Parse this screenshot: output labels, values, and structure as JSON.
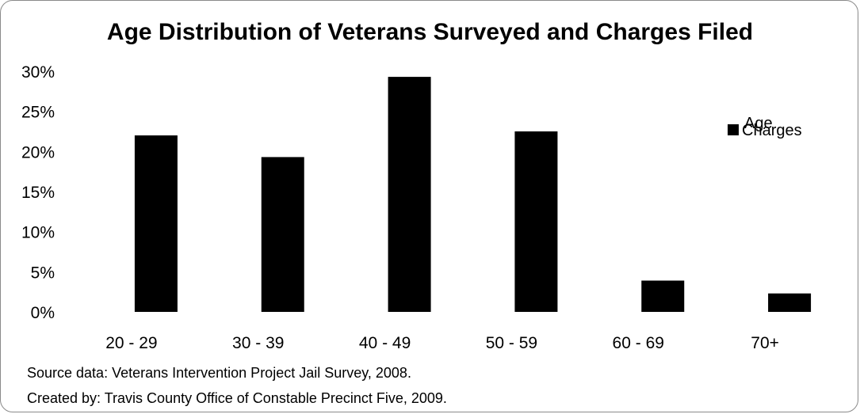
{
  "chart_data": {
    "type": "bar",
    "title": "Age Distribution of Veterans Surveyed and Charges Filed",
    "categories": [
      "20 - 29",
      "30 - 39",
      "40 - 49",
      "50 - 59",
      "60 - 69",
      "70+"
    ],
    "series": [
      {
        "name": "Age",
        "values": [
          0,
          0,
          0,
          0,
          0,
          0
        ],
        "color": "#ffffff"
      },
      {
        "name": "Charges",
        "values": [
          22,
          19.3,
          29.3,
          22.5,
          3.9,
          2.3
        ],
        "color": "#000000"
      }
    ],
    "y_ticks": [
      "0%",
      "5%",
      "10%",
      "15%",
      "20%",
      "25%",
      "30%"
    ],
    "ylim": [
      0,
      30
    ],
    "y_unit": "%",
    "legend_position": "right",
    "grid": false
  },
  "footnotes": {
    "source": "Source data: Veterans Intervention Project Jail Survey, 2008.",
    "credit": "Created by: Travis County Office of Constable Precinct Five, 2009."
  }
}
